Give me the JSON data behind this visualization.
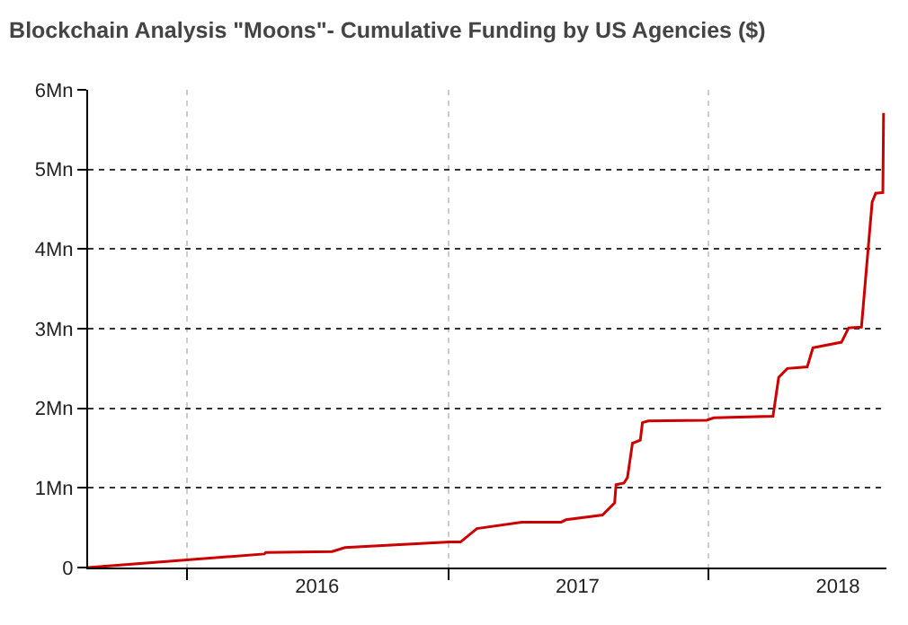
{
  "chart_data": {
    "type": "line",
    "title": "Blockchain Analysis \"Moons\"- Cumulative Funding by US Agencies ($)",
    "x": [
      "2015-08-15",
      "2016-04-18",
      "2016-04-20",
      "2016-07-22",
      "2016-08-09",
      "2017-01-03",
      "2017-01-18",
      "2017-02-10",
      "2017-04-14",
      "2017-06-08",
      "2017-06-15",
      "2017-08-05",
      "2017-08-22",
      "2017-08-24",
      "2017-09-04",
      "2017-09-09",
      "2017-09-16",
      "2017-09-27",
      "2017-09-30",
      "2017-10-08",
      "2017-12-29",
      "2018-01-08",
      "2018-04-01",
      "2018-04-09",
      "2018-04-21",
      "2018-05-19",
      "2018-05-27",
      "2018-07-06",
      "2018-07-16",
      "2018-08-03",
      "2018-08-18",
      "2018-08-23",
      "2018-09-02",
      "2018-09-03"
    ],
    "series": [
      {
        "color": "#cc0000",
        "values": [
          0,
          0.17,
          0.19,
          0.2,
          0.25,
          0.32,
          0.32,
          0.49,
          0.57,
          0.57,
          0.6,
          0.66,
          0.81,
          1.04,
          1.06,
          1.13,
          1.56,
          1.6,
          1.82,
          1.84,
          1.85,
          1.88,
          1.9,
          2.39,
          2.5,
          2.52,
          2.76,
          2.83,
          3.01,
          3.02,
          4.59,
          4.7,
          4.71,
          5.71
        ]
      }
    ],
    "xlim": [
      "2015-08-15",
      "2018-09-07"
    ],
    "xticks": [
      {
        "value": "2016-01-01",
        "label": null
      },
      {
        "value": "2016-07-01",
        "label": "2016"
      },
      {
        "value": "2017-01-01",
        "label": null
      },
      {
        "value": "2017-07-01",
        "label": "2017"
      },
      {
        "value": "2018-01-01",
        "label": null
      },
      {
        "value": "2018-07-01",
        "label": "2018"
      }
    ],
    "ylim": [
      0,
      6
    ],
    "yticks": [
      0,
      {
        "value": 1,
        "label": "1Mn"
      },
      {
        "value": 2,
        "label": "2Mn"
      },
      {
        "value": 3,
        "label": "3Mn"
      },
      {
        "value": 4,
        "label": "4Mn"
      },
      {
        "value": 5,
        "label": "5Mn"
      },
      {
        "value": 6,
        "label": "6Mn"
      }
    ],
    "grid": true,
    "marker": "none",
    "line_style": "solid"
  }
}
